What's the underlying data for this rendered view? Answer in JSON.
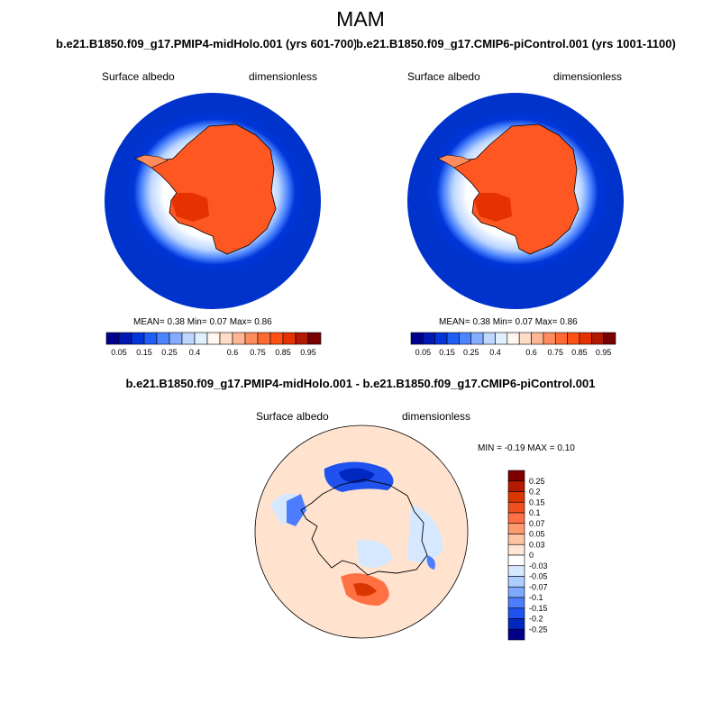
{
  "page_title": "MAM",
  "panels": [
    {
      "subtitle": "b.e21.B1850.f09_g17.PMIP4-midHolo.001 (yrs 601-700)",
      "left_label": "Surface albedo",
      "right_label": "dimensionless",
      "stats": "MEAN=   0.38  Min=   0.07  Max=   0.86"
    },
    {
      "subtitle": "b.e21.B1850.f09_g17.CMIP6-piControl.001 (yrs 1001-1100)",
      "left_label": "Surface albedo",
      "right_label": "dimensionless",
      "stats": "MEAN=   0.38  Min=   0.07  Max=   0.86"
    },
    {
      "subtitle": "b.e21.B1850.f09_g17.PMIP4-midHolo.001 - b.e21.B1850.f09_g17.CMIP6-piControl.001",
      "left_label": "Surface albedo",
      "right_label": "dimensionless",
      "stats": "MIN =  -0.19 MAX =   0.10"
    }
  ],
  "chart_data": [
    {
      "type": "heatmap",
      "projection": "south polar stereographic",
      "variable": "Surface albedo",
      "units": "dimensionless",
      "mean": 0.38,
      "min": 0.07,
      "max": 0.86,
      "colorbar": {
        "orientation": "horizontal",
        "tick_labels": [
          "0.05",
          "0.15",
          "0.25",
          "0.4",
          "0.6",
          "0.75",
          "0.85",
          "0.95"
        ],
        "colors": [
          "#00008f",
          "#0019b3",
          "#0036d9",
          "#1f5ef5",
          "#4d85ff",
          "#85adff",
          "#bdd7ff",
          "#e0f0ff",
          "#fff6ef",
          "#ffdcc6",
          "#ffb694",
          "#ff8c5c",
          "#ff6a33",
          "#ff5014",
          "#e63200",
          "#b31800",
          "#7a0000"
        ]
      }
    },
    {
      "type": "heatmap",
      "projection": "south polar stereographic",
      "variable": "Surface albedo",
      "units": "dimensionless",
      "mean": 0.38,
      "min": 0.07,
      "max": 0.86,
      "colorbar": {
        "orientation": "horizontal",
        "tick_labels": [
          "0.05",
          "0.15",
          "0.25",
          "0.4",
          "0.6",
          "0.75",
          "0.85",
          "0.95"
        ],
        "colors": [
          "#00008f",
          "#0019b3",
          "#0036d9",
          "#1f5ef5",
          "#4d85ff",
          "#85adff",
          "#bdd7ff",
          "#e0f0ff",
          "#fff6ef",
          "#ffdcc6",
          "#ffb694",
          "#ff8c5c",
          "#ff6a33",
          "#ff5014",
          "#e63200",
          "#b31800",
          "#7a0000"
        ]
      }
    },
    {
      "type": "heatmap",
      "projection": "south polar stereographic",
      "variable": "Surface albedo",
      "units": "dimensionless",
      "min": -0.19,
      "max": 0.1,
      "colorbar": {
        "orientation": "vertical",
        "tick_labels": [
          "0.25",
          "0.2",
          "0.15",
          "0.1",
          "0.07",
          "0.05",
          "0.03",
          "0",
          "-0.03",
          "-0.05",
          "-0.07",
          "-0.1",
          "-0.15",
          "-0.2",
          "-0.25"
        ],
        "colors": [
          "#7f0000",
          "#b31a00",
          "#d93600",
          "#f05020",
          "#ff7043",
          "#ff9a70",
          "#ffc4a3",
          "#ffe6d5",
          "#ffffff",
          "#d6e8ff",
          "#adccff",
          "#7fa8ff",
          "#4d7dff",
          "#1f52ef",
          "#0028c0",
          "#00008a"
        ]
      }
    }
  ],
  "colors": {
    "ocean_blue": "#0033cc",
    "ice_orange": "#ff5722",
    "diff_background": "#ffe3cf",
    "coastline": "#000000"
  }
}
